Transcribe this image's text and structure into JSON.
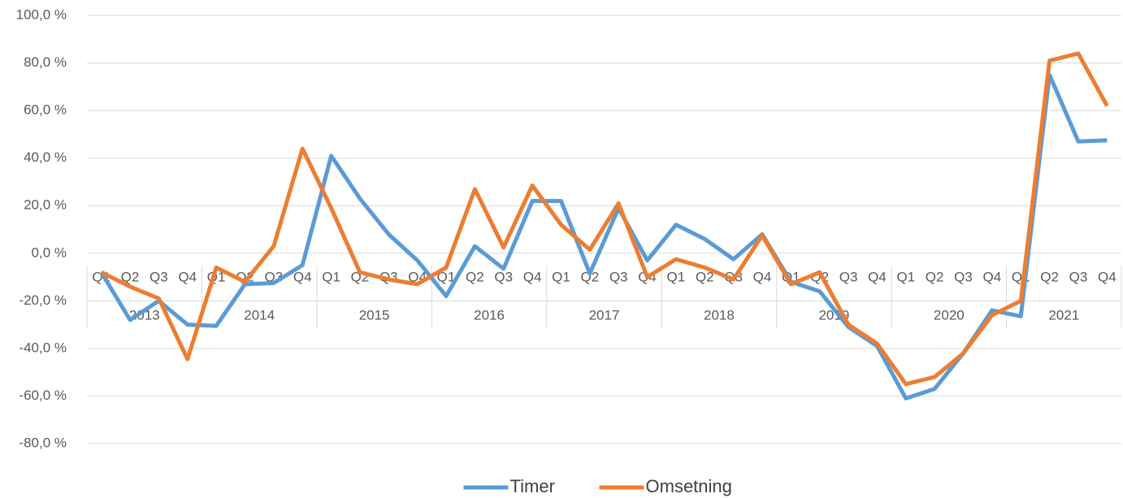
{
  "chart_data": {
    "type": "line",
    "categories": [
      "Q1",
      "Q2",
      "Q3",
      "Q4",
      "Q1",
      "Q2",
      "Q3",
      "Q4",
      "Q1",
      "Q2",
      "Q3",
      "Q4",
      "Q1",
      "Q2",
      "Q3",
      "Q4",
      "Q1",
      "Q2",
      "Q3",
      "Q4",
      "Q1",
      "Q2",
      "Q3",
      "Q4",
      "Q1",
      "Q2",
      "Q3",
      "Q4",
      "Q1",
      "Q2",
      "Q3",
      "Q4",
      "Q1",
      "Q2",
      "Q3",
      "Q4"
    ],
    "groups": [
      "2013",
      "2014",
      "2015",
      "2016",
      "2017",
      "2018",
      "2019",
      "2020",
      "2021"
    ],
    "series": [
      {
        "name": "Timer",
        "color": "#5b9bd5",
        "values": [
          -8,
          -28,
          -20,
          -30,
          -30.5,
          -13,
          -12.5,
          -5,
          41,
          23,
          8,
          -3,
          -18,
          3,
          -6.5,
          22,
          22,
          -8.5,
          19,
          -3,
          12,
          6,
          -2.5,
          8,
          -12,
          -16,
          -31,
          -39,
          -61,
          -57,
          -42,
          -24,
          -26.5,
          75,
          47,
          47.5
        ]
      },
      {
        "name": "Omsetning",
        "color": "#ed7d31",
        "values": [
          -8,
          -14,
          -19,
          -44.5,
          -6,
          -12,
          3,
          44,
          19,
          -8,
          -11,
          -13,
          -6,
          27,
          2.5,
          28.5,
          12,
          1.5,
          21,
          -10,
          -2.5,
          -6,
          -11,
          7.5,
          -13,
          -8,
          -30,
          -38,
          -55,
          -52,
          -42,
          -26,
          -20,
          81,
          84,
          62
        ]
      }
    ],
    "ylim": [
      -80,
      100
    ],
    "yticks": [
      {
        "value": -80,
        "label": "-80,0 %"
      },
      {
        "value": -60,
        "label": "-60,0 %"
      },
      {
        "value": -40,
        "label": "-40,0 %"
      },
      {
        "value": -20,
        "label": "-20,0 %"
      },
      {
        "value": 0,
        "label": "0,0 %"
      },
      {
        "value": 20,
        "label": "20,0 %"
      },
      {
        "value": 40,
        "label": "40,0 %"
      },
      {
        "value": 60,
        "label": "60,0 %"
      },
      {
        "value": 80,
        "label": "80,0 %"
      },
      {
        "value": 100,
        "label": "100,0 %"
      }
    ],
    "grid": true,
    "legend": "bottom"
  }
}
